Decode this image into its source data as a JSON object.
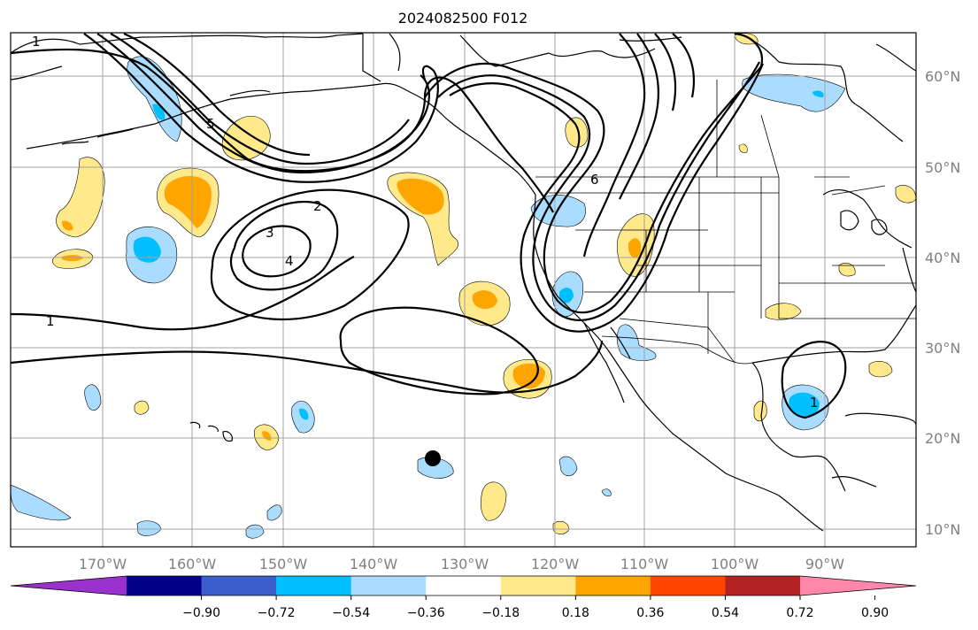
{
  "title": "2024082500 F012",
  "lat_labels": [
    "60°N",
    "50°N",
    "40°N",
    "30°N",
    "20°N",
    "10°N"
  ],
  "lon_labels": [
    "170°W",
    "160°W",
    "150°W",
    "140°W",
    "130°W",
    "120°W",
    "110°W",
    "100°W",
    "90°W"
  ],
  "contour_labels": [
    "1",
    "2",
    "3",
    "4",
    "5",
    "6",
    "1",
    "1"
  ],
  "colorbar": {
    "tick_labels": [
      "−0.90",
      "−0.72",
      "−0.54",
      "−0.36",
      "−0.18",
      "0.18",
      "0.36",
      "0.54",
      "0.72",
      "0.90"
    ],
    "colors": [
      "#9932cc",
      "#00008b",
      "#3a5fcd",
      "#00bfff",
      "#aadcff",
      "#ffffff",
      "#ffe98a",
      "#ffa500",
      "#ff4500",
      "#b22222",
      "#ff88aa"
    ]
  }
}
